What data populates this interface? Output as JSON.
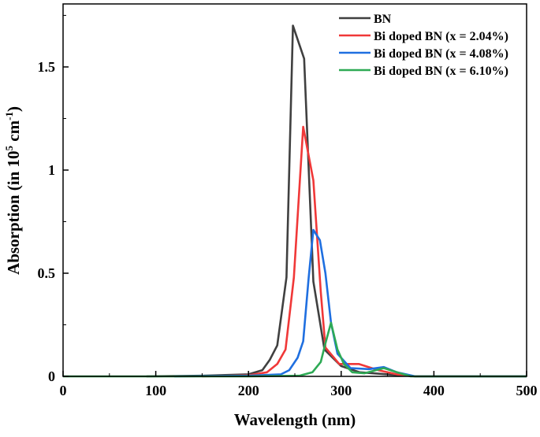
{
  "chart_data": {
    "type": "line",
    "title": "",
    "xlabel": "Wavelength (nm)",
    "ylabel_parts": {
      "prefix": "Absorption (in 10",
      "sup1": "5",
      "mid": " cm",
      "sup2": "-1",
      "suffix": ")"
    },
    "xlim": [
      0,
      500
    ],
    "ylim": [
      0,
      1.8
    ],
    "xticks": [
      0,
      100,
      200,
      300,
      400,
      500
    ],
    "xtick_labels": [
      "0",
      "100",
      "200",
      "300",
      "400",
      "500"
    ],
    "yticks": [
      0,
      0.5,
      1,
      1.5
    ],
    "ytick_labels": [
      "0",
      "0.5",
      "1",
      "1.5"
    ],
    "grid": false,
    "legend_position": "top-right",
    "series": [
      {
        "name": "BN",
        "color": "#404040",
        "x": [
          90,
          150,
          200,
          215,
          223,
          231,
          241,
          248,
          260,
          270,
          282,
          300,
          320,
          350,
          380,
          500
        ],
        "y": [
          0,
          0.003,
          0.01,
          0.03,
          0.08,
          0.15,
          0.48,
          1.7,
          1.54,
          0.46,
          0.13,
          0.05,
          0.02,
          0.01,
          0,
          0
        ]
      },
      {
        "name": "Bi doped BN (x = 2.04%)",
        "color": "#f03838",
        "x": [
          150,
          200,
          220,
          231,
          240,
          249,
          259,
          270,
          278,
          283,
          298,
          319,
          340,
          360,
          380,
          440,
          500
        ],
        "y": [
          0,
          0.005,
          0.02,
          0.06,
          0.13,
          0.48,
          1.21,
          0.95,
          0.41,
          0.14,
          0.06,
          0.06,
          0.03,
          0.01,
          0,
          0,
          0
        ]
      },
      {
        "name": "Bi doped BN (x = 4.08%)",
        "color": "#1f6fe0",
        "x": [
          120,
          200,
          235,
          244,
          253,
          259,
          265,
          270,
          277,
          283,
          289,
          296,
          310,
          330,
          346,
          360,
          380,
          500
        ],
        "y": [
          0,
          0.003,
          0.01,
          0.03,
          0.09,
          0.17,
          0.48,
          0.71,
          0.66,
          0.5,
          0.26,
          0.11,
          0.04,
          0.035,
          0.045,
          0.02,
          0,
          0
        ]
      },
      {
        "name": "Bi doped BN (x = 6.10%)",
        "color": "#2eaa55",
        "x": [
          0,
          200,
          255,
          269,
          278,
          283,
          289,
          296,
          303,
          312,
          325,
          346,
          360,
          375,
          500
        ],
        "y": [
          0,
          0,
          0.003,
          0.02,
          0.07,
          0.16,
          0.26,
          0.13,
          0.06,
          0.02,
          0.015,
          0.04,
          0.02,
          0,
          0
        ]
      }
    ]
  }
}
